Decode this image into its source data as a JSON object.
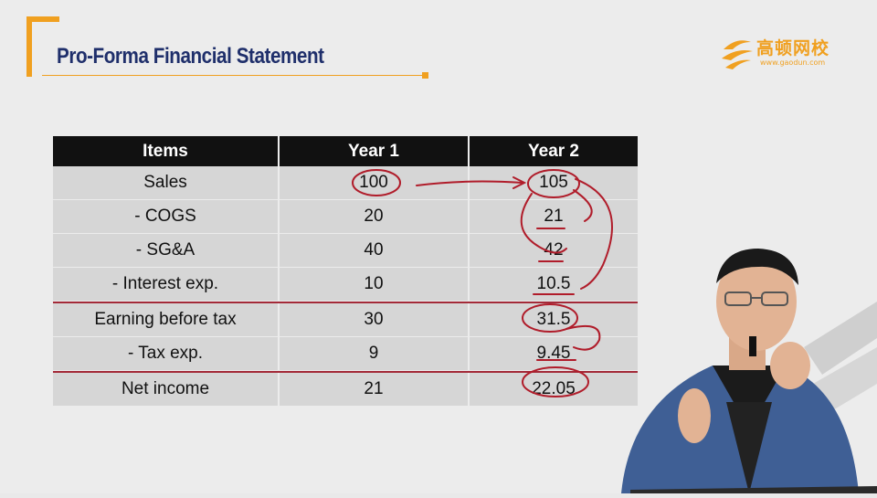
{
  "header": {
    "title": "Pro-Forma Financial Statement"
  },
  "logo": {
    "name": "高顿网校",
    "url": "www.gaodun.com",
    "brand_color": "#f0a020"
  },
  "table": {
    "columns": [
      "Items",
      "Year 1",
      "Year 2"
    ],
    "rows": [
      {
        "item": "Sales",
        "year1": "100",
        "year2": "105"
      },
      {
        "item": "- COGS",
        "year1": "20",
        "year2": "21"
      },
      {
        "item": "- SG&A",
        "year1": "40",
        "year2": "42"
      },
      {
        "item": "- Interest exp.",
        "year1": "10",
        "year2": "10.5"
      },
      {
        "item": "Earning before tax",
        "year1": "30",
        "year2": "31.5"
      },
      {
        "item": "- Tax exp.",
        "year1": "9",
        "year2": "9.45"
      },
      {
        "item": "Net income",
        "year1": "21",
        "year2": "22.05"
      }
    ]
  },
  "colors": {
    "title": "#1f2f6b",
    "accent": "#f0a020",
    "separator": "#a32a38",
    "annotation_ink": "#b01c2a",
    "header_bg": "#111111",
    "cell_bg": "#d6d6d6"
  }
}
